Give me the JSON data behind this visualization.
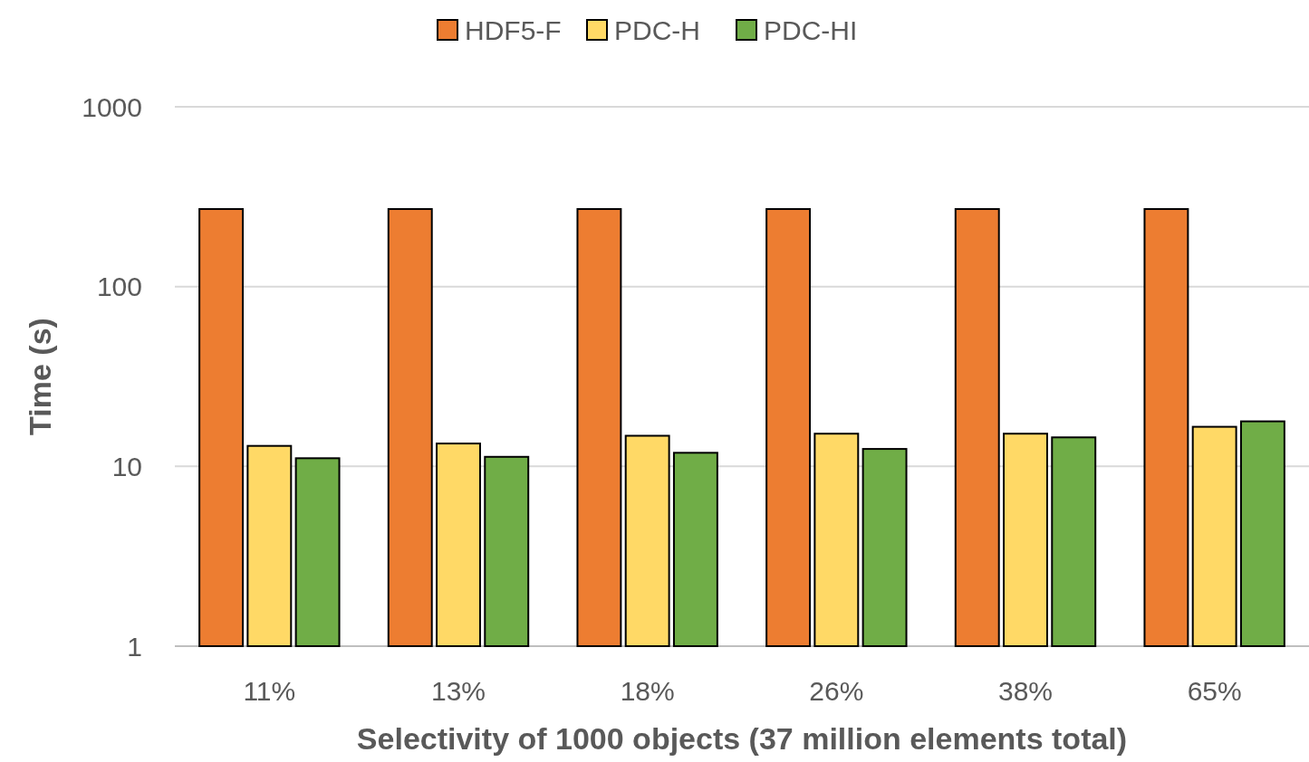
{
  "chart_data": {
    "type": "bar",
    "xlabel": "Selectivity of 1000 objects (37 million elements total)",
    "ylabel": "Time (s)",
    "categories": [
      "11%",
      "13%",
      "18%",
      "26%",
      "38%",
      "65%"
    ],
    "series": [
      {
        "name": "HDF5-F",
        "color": "#ed7d31",
        "values": [
          270,
          270,
          270,
          270,
          270,
          270
        ]
      },
      {
        "name": "PDC-H",
        "color": "#ffd966",
        "values": [
          13.0,
          13.4,
          14.8,
          15.2,
          15.2,
          16.6
        ]
      },
      {
        "name": "PDC-HI",
        "color": "#70ad47",
        "values": [
          11.1,
          11.3,
          11.9,
          12.5,
          14.5,
          17.8
        ]
      }
    ],
    "log": true,
    "ylim": [
      1,
      1000
    ],
    "yticks": [
      1,
      10,
      100,
      1000
    ],
    "grid": "y",
    "legend": "top"
  }
}
